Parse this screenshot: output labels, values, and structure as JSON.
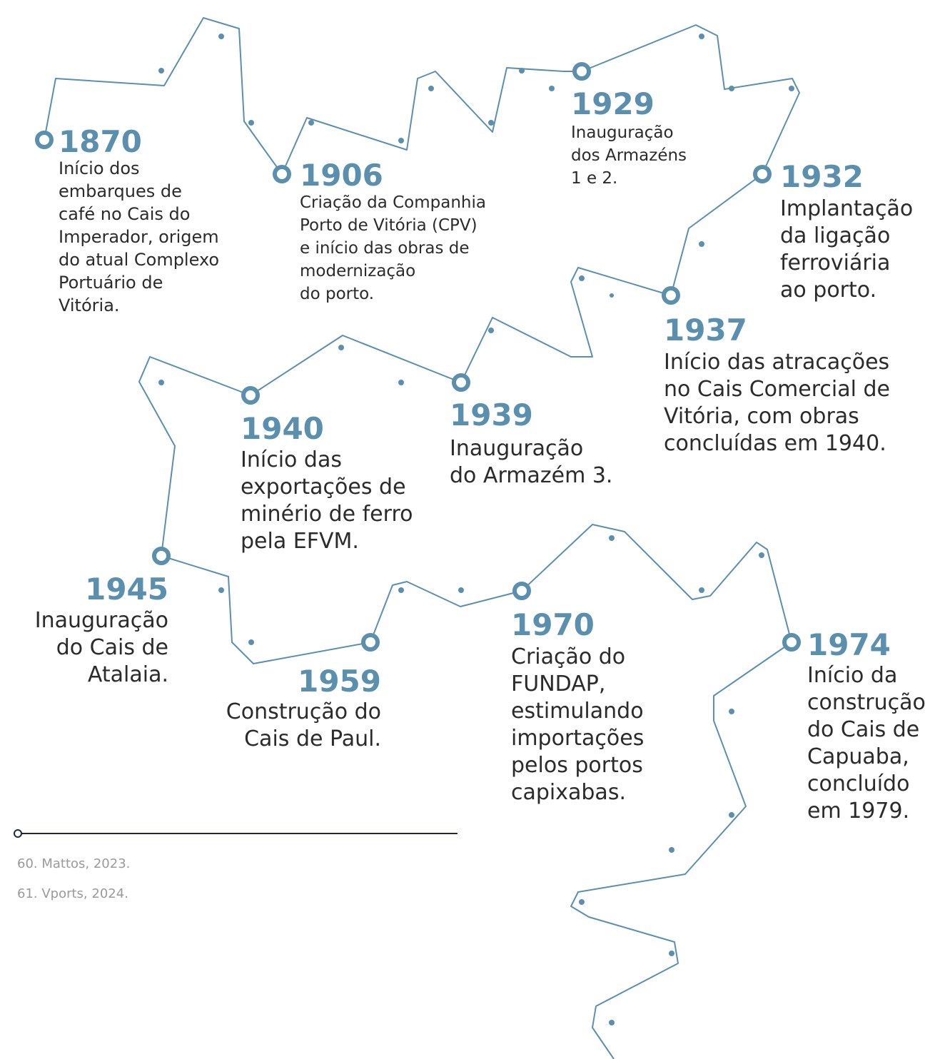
{
  "events": [
    {
      "year": "1870",
      "lines": [
        "Início dos",
        "embarques de",
        "café no Cais do",
        "Imperador, origem",
        "do atual Complexo",
        "Portuário de",
        "Vitória."
      ]
    },
    {
      "year": "1906",
      "lines": [
        "Criação da Companhia",
        "Porto de Vitória (CPV)",
        "e início das obras de",
        "modernização",
        "do porto."
      ]
    },
    {
      "year": "1929",
      "lines": [
        "Inauguração",
        "dos Armazéns",
        "1 e 2."
      ]
    },
    {
      "year": "1932",
      "lines": [
        "Implantação",
        "da ligação",
        "ferroviária",
        "ao porto."
      ]
    },
    {
      "year": "1937",
      "lines": [
        "Início das atracações",
        "no Cais Comercial de",
        "Vitória, com obras",
        "concluídas em 1940."
      ]
    },
    {
      "year": "1939",
      "lines": [
        "Inauguração",
        "do Armazém 3."
      ]
    },
    {
      "year": "1940",
      "lines": [
        "Início das",
        "exportações de",
        "minério de ferro",
        "pela EFVM."
      ]
    },
    {
      "year": "1945",
      "lines": [
        "Inauguração",
        "do Cais de",
        "Atalaia."
      ]
    },
    {
      "year": "1959",
      "lines": [
        "Construção do",
        "Cais de Paul."
      ]
    },
    {
      "year": "1970",
      "lines": [
        "Criação do",
        "FUNDAP,",
        "estimulando",
        "importações",
        "pelos portos",
        "capixabas."
      ]
    },
    {
      "year": "1974",
      "lines": [
        "Início da",
        "construção",
        "do Cais de",
        "Capuaba,",
        "concluído",
        "em 1979."
      ]
    }
  ],
  "footnotes": [
    "60. Mattos, 2023.",
    "61. Vports, 2024."
  ]
}
